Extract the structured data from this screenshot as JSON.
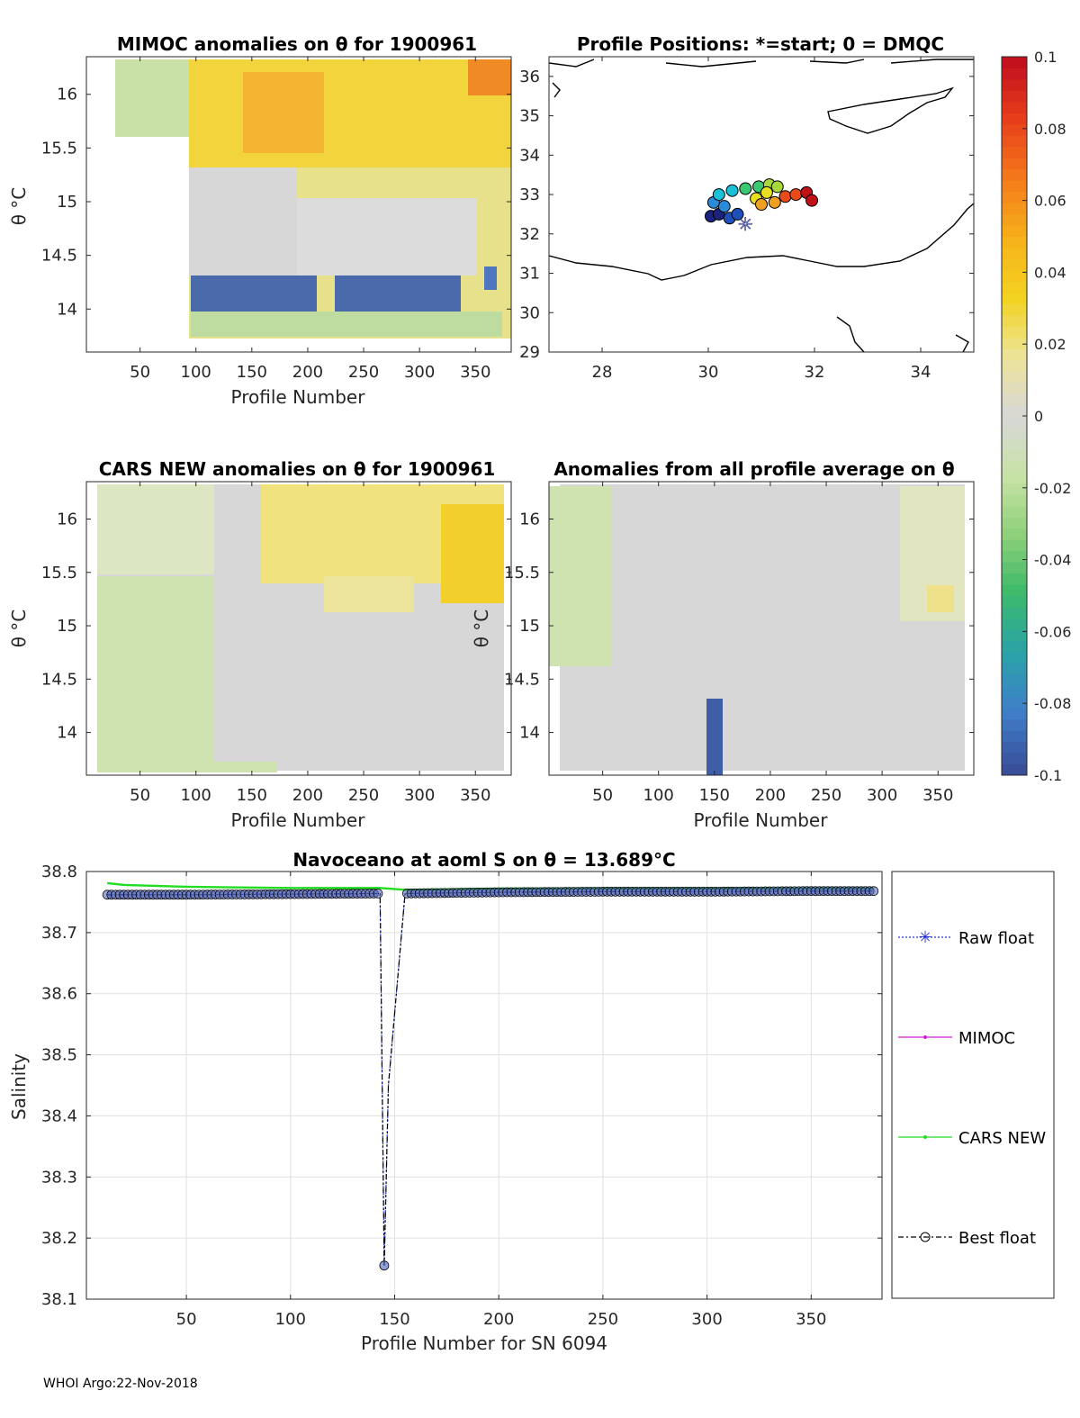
{
  "footer": "WHOI Argo:22-Nov-2018",
  "colorbar": {
    "ticks": [
      {
        "value": 0.1,
        "label": "0.1"
      },
      {
        "value": 0.08,
        "label": "0.08"
      },
      {
        "value": 0.06,
        "label": "0.06"
      },
      {
        "value": 0.04,
        "label": "0.04"
      },
      {
        "value": 0.02,
        "label": "0.02"
      },
      {
        "value": 0,
        "label": "0"
      },
      {
        "value": -0.02,
        "label": "-0.02"
      },
      {
        "value": -0.04,
        "label": "-0.04"
      },
      {
        "value": -0.06,
        "label": "-0.06"
      },
      {
        "value": -0.08,
        "label": "-0.08"
      },
      {
        "value": -0.1,
        "label": "-0.1"
      }
    ],
    "range": [
      -0.1,
      0.1
    ],
    "colors": [
      "#3a4f9a",
      "#3f7fc9",
      "#2aa3a8",
      "#3bba6a",
      "#8fd07a",
      "#c9e3a6",
      "#d7d7d7",
      "#ece49a",
      "#f2d321",
      "#f6b21a",
      "#f47c1a",
      "#e8401b",
      "#c3111d"
    ]
  },
  "chart_data": [
    {
      "type": "heatmap",
      "name": "mimoc",
      "title": "MIMOC anomalies on θ  for 1900961",
      "xlabel": "Profile Number",
      "ylabel": "θ °C",
      "xlim": [
        2,
        382
      ],
      "ylim": [
        13.6,
        16.35
      ],
      "xticks": [
        50,
        100,
        150,
        200,
        250,
        300,
        350
      ],
      "xticklabels": [
        "50",
        "100",
        "150",
        "200",
        "250",
        "300",
        "350"
      ],
      "yticks": [
        14,
        14.5,
        15,
        15.5,
        16
      ],
      "yticklabels": [
        "14",
        "14.5",
        "15",
        "15.5",
        "16"
      ]
    },
    {
      "type": "scatter",
      "name": "positions",
      "title": "Profile Positions: *=start; 0 = DMQC",
      "xlim": [
        27,
        35
      ],
      "ylim": [
        29,
        36.5
      ],
      "xticks": [
        28,
        30,
        32,
        34
      ],
      "xticklabels": [
        "28",
        "30",
        "32",
        "34"
      ],
      "yticks": [
        29,
        30,
        31,
        32,
        33,
        34,
        35,
        36
      ],
      "yticklabels": [
        "29",
        "30",
        "31",
        "32",
        "33",
        "34",
        "35",
        "36"
      ],
      "start_marker": {
        "lon": 30.7,
        "lat": 32.25
      }
    },
    {
      "type": "heatmap",
      "name": "cars",
      "title": "CARS NEW anomalies on θ for 1900961",
      "xlabel": "Profile Number",
      "ylabel": "θ °C",
      "xlim": [
        2,
        382
      ],
      "ylim": [
        13.6,
        16.35
      ],
      "xticks": [
        50,
        100,
        150,
        200,
        250,
        300,
        350
      ],
      "xticklabels": [
        "50",
        "100",
        "150",
        "200",
        "250",
        "300",
        "350"
      ],
      "yticks": [
        14,
        14.5,
        15,
        15.5,
        16
      ],
      "yticklabels": [
        "14",
        "14.5",
        "15",
        "15.5",
        "16"
      ]
    },
    {
      "type": "heatmap",
      "name": "allavg",
      "title": "Anomalies from all profile average on θ",
      "xlabel": "Profile Number",
      "ylabel": "θ °C",
      "xlim": [
        2,
        382
      ],
      "ylim": [
        13.6,
        16.35
      ],
      "xticks": [
        50,
        100,
        150,
        200,
        250,
        300,
        350
      ],
      "xticklabels": [
        "50",
        "100",
        "150",
        "200",
        "250",
        "300",
        "350"
      ],
      "yticks": [
        14,
        14.5,
        15,
        15.5,
        16
      ],
      "yticklabels": [
        "14",
        "14.5",
        "15",
        "15.5",
        "16"
      ]
    },
    {
      "type": "line",
      "name": "salinity",
      "title": "Navoceano at aoml S on θ = 13.689°C",
      "xlabel": "Profile Number for SN 6094",
      "ylabel": "Salinity",
      "xlim": [
        2,
        384
      ],
      "ylim": [
        38.1,
        38.8
      ],
      "xticks": [
        50,
        100,
        150,
        200,
        250,
        300,
        350
      ],
      "xticklabels": [
        "50",
        "100",
        "150",
        "200",
        "250",
        "300",
        "350"
      ],
      "yticks": [
        38.1,
        38.2,
        38.3,
        38.4,
        38.5,
        38.6,
        38.7,
        38.8
      ],
      "yticklabels": [
        "38.1",
        "38.2",
        "38.3",
        "38.4",
        "38.5",
        "38.6",
        "38.7",
        "38.8"
      ],
      "series": [
        {
          "name": "Raw float",
          "x": [
            12,
            50,
            100,
            143,
            145,
            147,
            155,
            200,
            250,
            300,
            350,
            380
          ],
          "y": [
            38.762,
            38.762,
            38.763,
            38.764,
            38.155,
            38.45,
            38.764,
            38.766,
            38.767,
            38.767,
            38.768,
            38.768
          ]
        },
        {
          "name": "MIMOC",
          "x": [],
          "y": []
        },
        {
          "name": "CARS NEW",
          "x": [
            12,
            20,
            50,
            100,
            143,
            155,
            200,
            250,
            300,
            350,
            380
          ],
          "y": [
            38.781,
            38.778,
            38.775,
            38.773,
            38.773,
            38.77,
            38.772,
            38.772,
            38.772,
            38.772,
            38.772
          ]
        },
        {
          "name": "Best float",
          "x": [
            12,
            50,
            100,
            143,
            145,
            147,
            155,
            200,
            250,
            300,
            350,
            380
          ],
          "y": [
            38.762,
            38.762,
            38.763,
            38.764,
            38.155,
            38.45,
            38.764,
            38.766,
            38.767,
            38.767,
            38.768,
            38.768
          ]
        }
      ],
      "legend": [
        "Raw float",
        "MIMOC",
        "CARS NEW",
        "Best float"
      ]
    }
  ]
}
